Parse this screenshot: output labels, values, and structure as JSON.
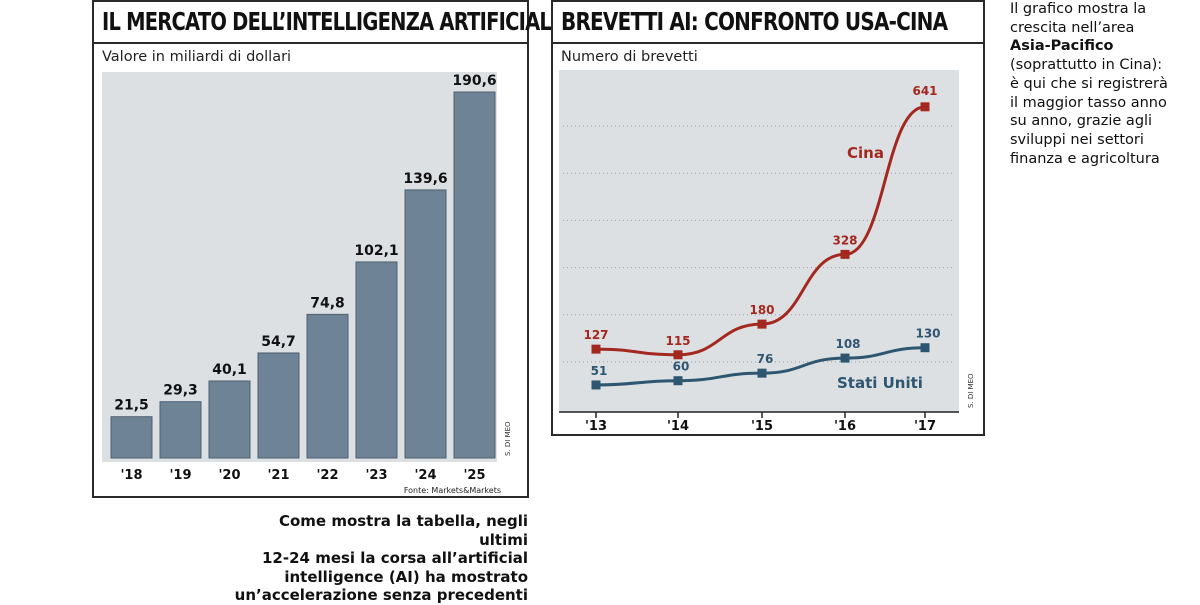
{
  "panel1": {
    "title": "IL MERCATO DELL’INTELLIGENZA ARTIFICIALE",
    "subtitle": "Valore in miliardi di dollari",
    "credit": "S. DI MEO",
    "source": "Fonte: Markets&Markets"
  },
  "panel2": {
    "title": "BREVETTI AI: CONFRONTO USA-CINA",
    "subtitle": "Numero di brevetti",
    "credit": "S. DI MEO"
  },
  "caption": {
    "lines": [
      "Come mostra la tabella, negli ultimi",
      "12-24 mesi la corsa all’artificial",
      "intelligence (AI) ha mostrato",
      "un’accelerazione senza precedenti"
    ]
  },
  "sidenote": {
    "before": "Il grafico mostra la crescita nell’area",
    "bold": "Asia-Pacifico",
    "after": "(soprattutto in Cina): è qui che si registrerà il maggior tasso anno su anno, grazie agli sviluppi nei settori finanza e agricoltura"
  },
  "colors": {
    "bar": "#6f8396",
    "barDark": "#4d5f70",
    "bg": "#dde0e3",
    "red": "#a3281f",
    "blue": "#2e5670",
    "grid": "#9aa0a5"
  },
  "chart_data": [
    {
      "type": "bar",
      "title": "IL MERCATO DELL’INTELLIGENZA ARTIFICIALE",
      "ylabel": "Valore in miliardi di dollari",
      "categories": [
        "'18",
        "'19",
        "'20",
        "'21",
        "'22",
        "'23",
        "'24",
        "'25"
      ],
      "values": [
        21.5,
        29.3,
        40.1,
        54.7,
        74.8,
        102.1,
        139.6,
        190.6
      ],
      "labels": [
        "21,5",
        "29,3",
        "40,1",
        "54,7",
        "74,8",
        "102,1",
        "139,6",
        "190,6"
      ],
      "ylim": [
        0,
        200
      ]
    },
    {
      "type": "line",
      "title": "BREVETTI AI: CONFRONTO USA-CINA",
      "ylabel": "Numero di brevetti",
      "x": [
        "'13",
        "'14",
        "'15",
        "'16",
        "'17"
      ],
      "series": [
        {
          "name": "Cina",
          "values": [
            127,
            115,
            180,
            328,
            641
          ]
        },
        {
          "name": "Stati Uniti",
          "values": [
            51,
            60,
            76,
            108,
            130
          ]
        }
      ],
      "ylim": [
        0,
        700
      ],
      "grid": true
    }
  ]
}
